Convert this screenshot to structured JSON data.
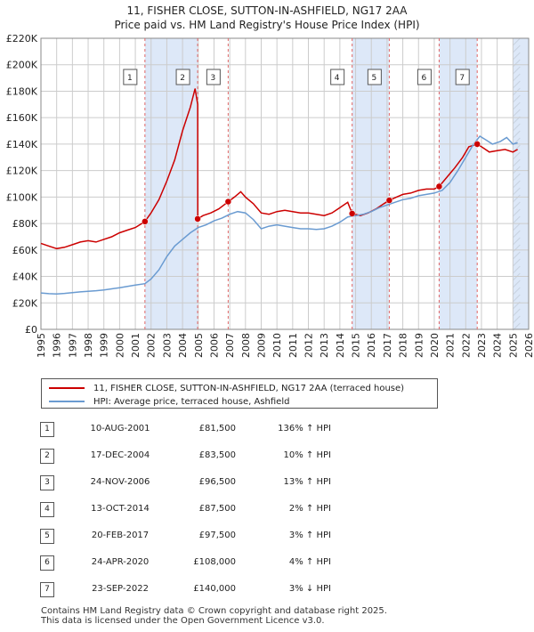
{
  "title_line1": "11, FISHER CLOSE, SUTTON-IN-ASHFIELD, NG17 2AA",
  "title_line2": "Price paid vs. HM Land Registry's House Price Index (HPI)",
  "colors": {
    "property": "#cc0000",
    "hpi": "#6a9bd1",
    "shade": "#dde8f8",
    "grid": "#cccccc",
    "vline": "#e06666"
  },
  "chart_data": {
    "type": "line",
    "title": "Price paid vs. HM Land Registry's House Price Index (HPI)",
    "xlabel": "",
    "ylabel": "",
    "xlim": [
      1995,
      2026
    ],
    "ylim": [
      0,
      220000
    ],
    "y_ticks": [
      0,
      20000,
      40000,
      60000,
      80000,
      100000,
      120000,
      140000,
      160000,
      180000,
      200000,
      220000
    ],
    "y_tick_labels": [
      "£0",
      "£20K",
      "£40K",
      "£60K",
      "£80K",
      "£100K",
      "£120K",
      "£140K",
      "£160K",
      "£180K",
      "£200K",
      "£220K"
    ],
    "x_ticks": [
      1995,
      1996,
      1997,
      1998,
      1999,
      2000,
      2001,
      2002,
      2003,
      2004,
      2005,
      2006,
      2007,
      2008,
      2009,
      2010,
      2011,
      2012,
      2013,
      2014,
      2015,
      2016,
      2017,
      2018,
      2019,
      2020,
      2021,
      2022,
      2023,
      2024,
      2025,
      2026
    ],
    "series": [
      {
        "name": "11, FISHER CLOSE, SUTTON-IN-ASHFIELD, NG17 2AA (terraced house)",
        "points": [
          [
            1995.0,
            65000
          ],
          [
            1995.5,
            63000
          ],
          [
            1996.0,
            61000
          ],
          [
            1996.5,
            62000
          ],
          [
            1997.0,
            64000
          ],
          [
            1997.5,
            66000
          ],
          [
            1998.0,
            67000
          ],
          [
            1998.5,
            66000
          ],
          [
            1999.0,
            68000
          ],
          [
            1999.5,
            70000
          ],
          [
            2000.0,
            73000
          ],
          [
            2000.5,
            75000
          ],
          [
            2001.0,
            77000
          ],
          [
            2001.61,
            81500
          ],
          [
            2002.0,
            88000
          ],
          [
            2002.5,
            98000
          ],
          [
            2003.0,
            112000
          ],
          [
            2003.5,
            128000
          ],
          [
            2004.0,
            150000
          ],
          [
            2004.5,
            168000
          ],
          [
            2004.8,
            182000
          ],
          [
            2004.96,
            170000
          ],
          [
            2004.97,
            83500
          ],
          [
            2005.3,
            86000
          ],
          [
            2005.8,
            88000
          ],
          [
            2006.3,
            91000
          ],
          [
            2006.9,
            96500
          ],
          [
            2007.3,
            100000
          ],
          [
            2007.7,
            104000
          ],
          [
            2008.0,
            100000
          ],
          [
            2008.5,
            95000
          ],
          [
            2009.0,
            88000
          ],
          [
            2009.5,
            87000
          ],
          [
            2010.0,
            89000
          ],
          [
            2010.5,
            90000
          ],
          [
            2011.0,
            89000
          ],
          [
            2011.5,
            88000
          ],
          [
            2012.0,
            88000
          ],
          [
            2012.5,
            87000
          ],
          [
            2013.0,
            86000
          ],
          [
            2013.5,
            88000
          ],
          [
            2014.0,
            92000
          ],
          [
            2014.5,
            96000
          ],
          [
            2014.78,
            87500
          ],
          [
            2015.3,
            86000
          ],
          [
            2015.8,
            88000
          ],
          [
            2016.3,
            91000
          ],
          [
            2016.8,
            95000
          ],
          [
            2017.14,
            97500
          ],
          [
            2017.6,
            100000
          ],
          [
            2018.0,
            102000
          ],
          [
            2018.5,
            103000
          ],
          [
            2019.0,
            105000
          ],
          [
            2019.5,
            106000
          ],
          [
            2020.0,
            106000
          ],
          [
            2020.31,
            108000
          ],
          [
            2020.8,
            115000
          ],
          [
            2021.3,
            122000
          ],
          [
            2021.8,
            130000
          ],
          [
            2022.2,
            138000
          ],
          [
            2022.73,
            140000
          ],
          [
            2023.0,
            138000
          ],
          [
            2023.5,
            134000
          ],
          [
            2024.0,
            135000
          ],
          [
            2024.5,
            136000
          ],
          [
            2025.0,
            134000
          ],
          [
            2025.3,
            136000
          ]
        ]
      },
      {
        "name": "HPI: Average price, terraced house, Ashfield",
        "points": [
          [
            1995.0,
            27500
          ],
          [
            1995.5,
            27000
          ],
          [
            1996.0,
            26800
          ],
          [
            1996.5,
            27200
          ],
          [
            1997.0,
            27800
          ],
          [
            1997.5,
            28300
          ],
          [
            1998.0,
            28700
          ],
          [
            1998.5,
            29200
          ],
          [
            1999.0,
            29800
          ],
          [
            1999.5,
            30600
          ],
          [
            2000.0,
            31500
          ],
          [
            2000.5,
            32500
          ],
          [
            2001.0,
            33500
          ],
          [
            2001.61,
            34500
          ],
          [
            2002.0,
            38000
          ],
          [
            2002.5,
            45000
          ],
          [
            2003.0,
            55000
          ],
          [
            2003.5,
            63000
          ],
          [
            2004.0,
            68000
          ],
          [
            2004.5,
            73000
          ],
          [
            2005.0,
            77000
          ],
          [
            2005.5,
            79000
          ],
          [
            2006.0,
            82000
          ],
          [
            2006.5,
            84000
          ],
          [
            2007.0,
            87000
          ],
          [
            2007.5,
            89000
          ],
          [
            2008.0,
            88000
          ],
          [
            2008.5,
            83000
          ],
          [
            2009.0,
            76000
          ],
          [
            2009.5,
            78000
          ],
          [
            2010.0,
            79000
          ],
          [
            2010.5,
            78000
          ],
          [
            2011.0,
            77000
          ],
          [
            2011.5,
            76000
          ],
          [
            2012.0,
            76000
          ],
          [
            2012.5,
            75500
          ],
          [
            2013.0,
            76000
          ],
          [
            2013.5,
            78000
          ],
          [
            2014.0,
            81000
          ],
          [
            2014.5,
            85000
          ],
          [
            2015.0,
            86000
          ],
          [
            2015.5,
            87000
          ],
          [
            2016.0,
            89000
          ],
          [
            2016.5,
            92000
          ],
          [
            2017.0,
            94000
          ],
          [
            2017.5,
            96000
          ],
          [
            2018.0,
            98000
          ],
          [
            2018.5,
            99000
          ],
          [
            2019.0,
            101000
          ],
          [
            2019.5,
            102000
          ],
          [
            2020.0,
            103000
          ],
          [
            2020.5,
            105000
          ],
          [
            2021.0,
            111000
          ],
          [
            2021.5,
            120000
          ],
          [
            2022.0,
            130000
          ],
          [
            2022.5,
            140000
          ],
          [
            2022.9,
            146000
          ],
          [
            2023.3,
            143000
          ],
          [
            2023.7,
            140000
          ],
          [
            2024.2,
            142000
          ],
          [
            2024.6,
            145000
          ],
          [
            2025.0,
            140000
          ],
          [
            2025.3,
            141000
          ]
        ]
      }
    ],
    "sales": [
      {
        "n": "1",
        "x": 2001.61,
        "price": 81500
      },
      {
        "n": "2",
        "x": 2004.96,
        "price": 83500
      },
      {
        "n": "3",
        "x": 2006.9,
        "price": 96500
      },
      {
        "n": "4",
        "x": 2014.78,
        "price": 87500
      },
      {
        "n": "5",
        "x": 2017.14,
        "price": 97500
      },
      {
        "n": "6",
        "x": 2020.31,
        "price": 108000
      },
      {
        "n": "7",
        "x": 2022.73,
        "price": 140000
      }
    ],
    "shaded_ranges": [
      [
        2001.61,
        2004.96
      ],
      [
        2014.78,
        2017.14
      ],
      [
        2020.31,
        2022.73
      ],
      [
        2025.0,
        2026.0
      ]
    ],
    "legend_position": "below-plot"
  },
  "legend": {
    "property": "11, FISHER CLOSE, SUTTON-IN-ASHFIELD, NG17 2AA (terraced house)",
    "hpi": "HPI: Average price, terraced house, Ashfield"
  },
  "sales_table": [
    {
      "n": "1",
      "date": "10-AUG-2001",
      "price": "£81,500",
      "hpi": "136% ↑ HPI"
    },
    {
      "n": "2",
      "date": "17-DEC-2004",
      "price": "£83,500",
      "hpi": "10% ↑ HPI"
    },
    {
      "n": "3",
      "date": "24-NOV-2006",
      "price": "£96,500",
      "hpi": "13% ↑ HPI"
    },
    {
      "n": "4",
      "date": "13-OCT-2014",
      "price": "£87,500",
      "hpi": "2% ↑ HPI"
    },
    {
      "n": "5",
      "date": "20-FEB-2017",
      "price": "£97,500",
      "hpi": "3% ↑ HPI"
    },
    {
      "n": "6",
      "date": "24-APR-2020",
      "price": "£108,000",
      "hpi": "4% ↑ HPI"
    },
    {
      "n": "7",
      "date": "23-SEP-2022",
      "price": "£140,000",
      "hpi": "3% ↓ HPI"
    }
  ],
  "footer_line1": "Contains HM Land Registry data © Crown copyright and database right 2025.",
  "footer_line2": "This data is licensed under the Open Government Licence v3.0."
}
